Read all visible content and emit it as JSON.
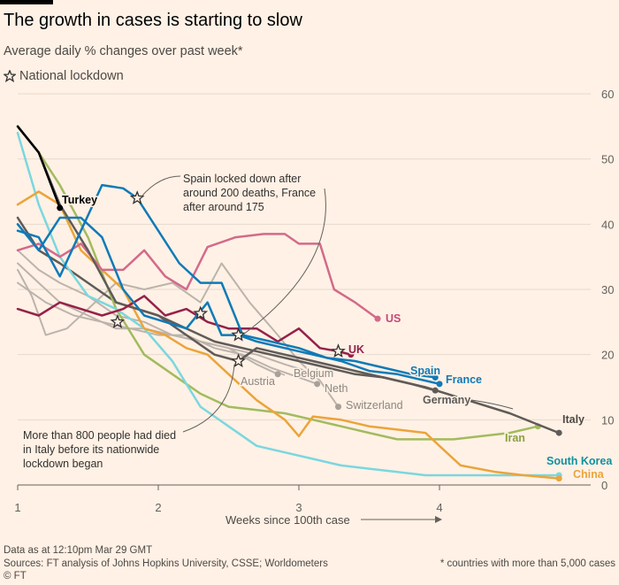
{
  "title": "The growth in cases is starting to slow",
  "subtitle": "Average daily % changes over past week*",
  "legend_lockdown": "National lockdown",
  "footer": {
    "date": "Data as at 12:10pm Mar 29 GMT",
    "sources": "Sources: FT analysis of Johns Hopkins University, CSSE; Worldometers",
    "note": "* countries with more than 5,000 cases",
    "credit": "© FT"
  },
  "chart_data": {
    "type": "line",
    "xlabel": "Weeks since 100th case",
    "xlim": [
      1,
      5
    ],
    "ylim": [
      0,
      60
    ],
    "x_ticks": [
      1,
      2,
      3,
      4
    ],
    "y_ticks": [
      0,
      10,
      20,
      30,
      40,
      50,
      60
    ],
    "annotations": [
      "Spain locked down after around 200 deaths, France after around 175",
      "More than 800 people had died in Italy before its nationwide lockdown began"
    ],
    "series": [
      {
        "name": "Austria",
        "color": "#bcb3ac",
        "label_color": "#8e8781",
        "lockdown_x": null,
        "points": [
          [
            1.0,
            34
          ],
          [
            1.15,
            31
          ],
          [
            1.3,
            28
          ],
          [
            1.5,
            26
          ],
          [
            1.7,
            24
          ],
          [
            1.9,
            24
          ],
          [
            2.1,
            23
          ],
          [
            2.3,
            22
          ],
          [
            2.5,
            21
          ],
          [
            2.7,
            18.5
          ],
          [
            2.85,
            17
          ]
        ]
      },
      {
        "name": "Belgium",
        "color": "#bcb3ac",
        "label_color": "#8e8781",
        "lockdown_x": null,
        "points": [
          [
            1.0,
            36
          ],
          [
            1.15,
            33
          ],
          [
            1.3,
            31
          ],
          [
            1.5,
            29
          ],
          [
            1.7,
            26
          ],
          [
            1.9,
            25
          ],
          [
            2.1,
            23
          ],
          [
            2.3,
            22
          ],
          [
            2.5,
            21
          ],
          [
            2.7,
            20
          ],
          [
            2.9,
            18.5
          ],
          [
            3.05,
            17.5
          ],
          [
            3.2,
            17
          ]
        ]
      },
      {
        "name": "Neth",
        "color": "#bcb3ac",
        "label_color": "#8e8781",
        "lockdown_x": null,
        "points": [
          [
            1.0,
            31
          ],
          [
            1.2,
            28
          ],
          [
            1.4,
            26
          ],
          [
            1.6,
            25
          ],
          [
            1.8,
            24
          ],
          [
            2.0,
            23
          ],
          [
            2.2,
            23
          ],
          [
            2.4,
            21
          ],
          [
            2.6,
            20
          ],
          [
            2.8,
            18
          ],
          [
            3.0,
            16.5
          ],
          [
            3.13,
            15.5
          ]
        ]
      },
      {
        "name": "Switzerland",
        "color": "#bcb3ac",
        "label_color": "#8e8781",
        "lockdown_x": null,
        "points": [
          [
            1.0,
            33
          ],
          [
            1.1,
            29
          ],
          [
            1.2,
            23
          ],
          [
            1.35,
            24
          ],
          [
            1.5,
            27
          ],
          [
            1.7,
            31
          ],
          [
            1.9,
            30
          ],
          [
            2.1,
            31
          ],
          [
            2.3,
            28
          ],
          [
            2.45,
            34
          ],
          [
            2.65,
            28
          ],
          [
            2.85,
            23
          ],
          [
            3.0,
            19
          ],
          [
            3.15,
            16
          ],
          [
            3.28,
            12
          ]
        ]
      },
      {
        "name": "Germany",
        "color": "#5f5b58",
        "label_color": "#5f5b58",
        "lockdown_x": null,
        "points": [
          [
            1.0,
            41
          ],
          [
            1.15,
            36
          ],
          [
            1.3,
            34
          ],
          [
            1.5,
            31
          ],
          [
            1.7,
            28
          ],
          [
            1.85,
            27
          ],
          [
            2.0,
            26
          ],
          [
            2.2,
            24
          ],
          [
            2.4,
            22
          ],
          [
            2.6,
            21
          ],
          [
            2.8,
            20
          ],
          [
            3.0,
            19
          ],
          [
            3.2,
            18
          ],
          [
            3.4,
            17
          ],
          [
            3.6,
            16.5
          ],
          [
            3.8,
            15.5
          ],
          [
            3.97,
            14.5
          ]
        ]
      },
      {
        "name": "Italy",
        "color": "#5f5b58",
        "label_color": "#4d4845",
        "lockdown_x": 2.57,
        "points": [
          [
            1.0,
            55
          ],
          [
            1.15,
            51
          ],
          [
            1.3,
            43
          ],
          [
            1.5,
            36
          ],
          [
            1.7,
            28
          ],
          [
            1.85,
            27
          ],
          [
            2.0,
            26
          ],
          [
            2.2,
            23
          ],
          [
            2.4,
            20
          ],
          [
            2.57,
            19
          ],
          [
            2.7,
            21
          ],
          [
            2.9,
            20
          ],
          [
            3.1,
            19
          ],
          [
            3.3,
            18
          ],
          [
            3.5,
            17
          ],
          [
            3.7,
            16
          ],
          [
            3.9,
            15
          ],
          [
            4.2,
            13
          ],
          [
            4.5,
            11
          ],
          [
            4.85,
            8
          ]
        ]
      },
      {
        "name": "Turkey",
        "color": "#000000",
        "label_color": "#000000",
        "lockdown_x": null,
        "points": [
          [
            1.0,
            55
          ],
          [
            1.15,
            51
          ],
          [
            1.3,
            42.5
          ]
        ]
      },
      {
        "name": "Spain",
        "color": "#0f7ab8",
        "label_color": "#0f7ab8",
        "lockdown_x": 1.85,
        "points": [
          [
            1.0,
            39
          ],
          [
            1.15,
            38
          ],
          [
            1.3,
            32
          ],
          [
            1.45,
            39
          ],
          [
            1.6,
            46
          ],
          [
            1.75,
            45.5
          ],
          [
            1.85,
            44
          ],
          [
            2.0,
            39
          ],
          [
            2.15,
            34
          ],
          [
            2.3,
            31
          ],
          [
            2.45,
            31
          ],
          [
            2.6,
            23
          ],
          [
            2.8,
            22
          ],
          [
            3.0,
            21
          ],
          [
            3.2,
            19.5
          ],
          [
            3.4,
            19
          ],
          [
            3.6,
            18
          ],
          [
            3.8,
            17
          ],
          [
            3.97,
            16.5
          ]
        ]
      },
      {
        "name": "France",
        "color": "#0f7ab8",
        "label_color": "#0f7ab8",
        "lockdown_x": 2.57,
        "points": [
          [
            1.0,
            40
          ],
          [
            1.15,
            36
          ],
          [
            1.3,
            41
          ],
          [
            1.45,
            41
          ],
          [
            1.6,
            38
          ],
          [
            1.75,
            30
          ],
          [
            1.9,
            26
          ],
          [
            2.05,
            25
          ],
          [
            2.2,
            24
          ],
          [
            2.35,
            28
          ],
          [
            2.45,
            23
          ],
          [
            2.57,
            23
          ],
          [
            2.7,
            22
          ],
          [
            2.9,
            21
          ],
          [
            3.1,
            20
          ],
          [
            3.3,
            19
          ],
          [
            3.5,
            17.5
          ],
          [
            3.7,
            17
          ],
          [
            3.9,
            16
          ],
          [
            4.0,
            15.5
          ]
        ]
      },
      {
        "name": "UK",
        "color": "#96214a",
        "label_color": "#96214a",
        "lockdown_x": 3.28,
        "points": [
          [
            1.0,
            27
          ],
          [
            1.15,
            26
          ],
          [
            1.3,
            28
          ],
          [
            1.45,
            27
          ],
          [
            1.6,
            26
          ],
          [
            1.75,
            27
          ],
          [
            1.9,
            29
          ],
          [
            2.05,
            26
          ],
          [
            2.2,
            27
          ],
          [
            2.35,
            25
          ],
          [
            2.5,
            24
          ],
          [
            2.7,
            24
          ],
          [
            2.85,
            22
          ],
          [
            3.0,
            24
          ],
          [
            3.15,
            21
          ],
          [
            3.28,
            20.5
          ],
          [
            3.37,
            20
          ]
        ]
      },
      {
        "name": "US",
        "color": "#d36a8a",
        "label_color": "#c4497a",
        "lockdown_x": null,
        "points": [
          [
            1.0,
            36
          ],
          [
            1.15,
            37
          ],
          [
            1.3,
            35
          ],
          [
            1.45,
            37
          ],
          [
            1.6,
            33
          ],
          [
            1.75,
            33
          ],
          [
            1.9,
            36
          ],
          [
            2.05,
            32
          ],
          [
            2.2,
            30
          ],
          [
            2.35,
            36.5
          ],
          [
            2.55,
            38
          ],
          [
            2.75,
            38.5
          ],
          [
            2.9,
            38.5
          ],
          [
            3.0,
            37
          ],
          [
            3.15,
            37
          ],
          [
            3.25,
            30
          ],
          [
            3.4,
            28
          ],
          [
            3.56,
            25.5
          ]
        ]
      },
      {
        "name": "Iran",
        "color": "#a2bb5e",
        "label_color": "#8aa142",
        "lockdown_x": null,
        "points": [
          [
            1.0,
            55
          ],
          [
            1.15,
            51
          ],
          [
            1.3,
            46
          ],
          [
            1.5,
            38
          ],
          [
            1.7,
            27
          ],
          [
            1.9,
            20
          ],
          [
            2.1,
            17
          ],
          [
            2.3,
            14
          ],
          [
            2.5,
            12
          ],
          [
            2.7,
            11.5
          ],
          [
            2.9,
            11
          ],
          [
            3.1,
            10
          ],
          [
            3.3,
            9
          ],
          [
            3.5,
            8
          ],
          [
            3.7,
            7
          ],
          [
            3.9,
            7
          ],
          [
            4.1,
            7
          ],
          [
            4.3,
            7.5
          ],
          [
            4.5,
            8
          ],
          [
            4.7,
            9
          ]
        ]
      },
      {
        "name": "South Korea",
        "color": "#7ad7df",
        "label_color": "#0f91a0",
        "lockdown_x": null,
        "points": [
          [
            1.0,
            54
          ],
          [
            1.15,
            43
          ],
          [
            1.3,
            35
          ],
          [
            1.5,
            29
          ],
          [
            1.7,
            27
          ],
          [
            1.9,
            24
          ],
          [
            2.1,
            19
          ],
          [
            2.3,
            12
          ],
          [
            2.5,
            9
          ],
          [
            2.7,
            6
          ],
          [
            2.9,
            5
          ],
          [
            3.1,
            4
          ],
          [
            3.3,
            3
          ],
          [
            3.5,
            2.5
          ],
          [
            3.7,
            2
          ],
          [
            3.9,
            1.5
          ],
          [
            4.1,
            1.5
          ],
          [
            4.4,
            1.5
          ],
          [
            4.85,
            1.5
          ]
        ]
      },
      {
        "name": "China",
        "color": "#eba43a",
        "label_color": "#eba43a",
        "lockdown_x": null,
        "points": [
          [
            1.0,
            43
          ],
          [
            1.15,
            45
          ],
          [
            1.3,
            43
          ],
          [
            1.45,
            36
          ],
          [
            1.6,
            33
          ],
          [
            1.75,
            30
          ],
          [
            1.9,
            24
          ],
          [
            2.05,
            23
          ],
          [
            2.2,
            21
          ],
          [
            2.35,
            20
          ],
          [
            2.5,
            17
          ],
          [
            2.7,
            13
          ],
          [
            2.9,
            10
          ],
          [
            3.0,
            7.5
          ],
          [
            3.1,
            10.5
          ],
          [
            3.3,
            10
          ],
          [
            3.5,
            9
          ],
          [
            3.7,
            8.5
          ],
          [
            3.9,
            8
          ],
          [
            4.05,
            5
          ],
          [
            4.15,
            3
          ],
          [
            4.4,
            2
          ],
          [
            4.6,
            1.5
          ],
          [
            4.85,
            1
          ]
        ]
      }
    ]
  }
}
